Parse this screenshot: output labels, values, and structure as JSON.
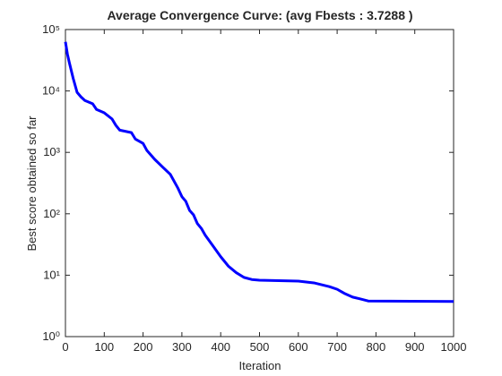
{
  "chart_data": {
    "type": "line",
    "title": "Average Convergence Curve: (avg Fbests : 3.7288 )",
    "xlabel": "Iteration",
    "ylabel": "Best score obtained so far",
    "x": [
      0,
      5,
      10,
      20,
      30,
      40,
      50,
      70,
      80,
      100,
      120,
      130,
      140,
      170,
      180,
      200,
      210,
      230,
      250,
      270,
      290,
      300,
      310,
      320,
      330,
      340,
      350,
      360,
      380,
      400,
      420,
      440,
      460,
      480,
      500,
      600,
      640,
      680,
      700,
      720,
      740,
      760,
      780,
      1000
    ],
    "series": [
      {
        "name": "Convergence",
        "color": "#0000ff",
        "values": [
          63000,
          40000,
          29000,
          16000,
          9500,
          8000,
          7000,
          6200,
          5000,
          4400,
          3500,
          2750,
          2300,
          2100,
          1650,
          1400,
          1070,
          770,
          580,
          440,
          260,
          190,
          160,
          113,
          96,
          69,
          58,
          45,
          30,
          20,
          14,
          11,
          9.2,
          8.5,
          8.3,
          8,
          7.5,
          6.5,
          5.9,
          5,
          4.4,
          4.1,
          3.8,
          3.7288
        ]
      }
    ],
    "xlim": [
      0,
      1000
    ],
    "xticks": [
      0,
      100,
      200,
      300,
      400,
      500,
      600,
      700,
      800,
      900,
      1000
    ],
    "ylim": [
      1,
      100000
    ],
    "yscale": "log",
    "yticks": [
      {
        "value": 1,
        "label": "10⁰"
      },
      {
        "value": 10,
        "label": "10¹"
      },
      {
        "value": 100,
        "label": "10²"
      },
      {
        "value": 1000,
        "label": "10³"
      },
      {
        "value": 10000,
        "label": "10⁴"
      },
      {
        "value": 100000,
        "label": "10⁵"
      }
    ],
    "grid": false
  }
}
